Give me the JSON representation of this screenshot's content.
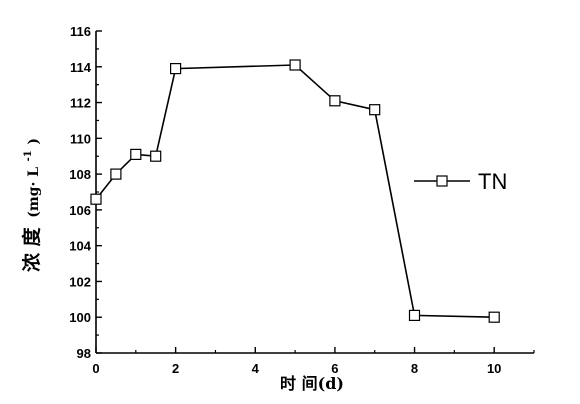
{
  "chart_data": {
    "type": "line",
    "title": "",
    "xlabel": "时 间(d)",
    "ylabel_main": "浓 度",
    "ylabel_unit_prefix": "(mg· L",
    "ylabel_unit_sup": "-1",
    "ylabel_unit_suffix": ")",
    "xlim": [
      0,
      11
    ],
    "ylim": [
      98,
      116
    ],
    "xticks": [
      0,
      2,
      4,
      6,
      8,
      10
    ],
    "yticks": [
      98,
      100,
      102,
      104,
      106,
      108,
      110,
      112,
      114,
      116
    ],
    "grid": false,
    "legend_position": "right",
    "series": [
      {
        "name": "TN",
        "marker": "open-square",
        "color": "#000000",
        "x": [
          0,
          0.5,
          1,
          1.5,
          2,
          5,
          6,
          7,
          8,
          10
        ],
        "y": [
          106.6,
          108.0,
          109.1,
          109.0,
          113.9,
          114.1,
          112.1,
          111.6,
          100.1,
          100.0
        ]
      }
    ]
  }
}
